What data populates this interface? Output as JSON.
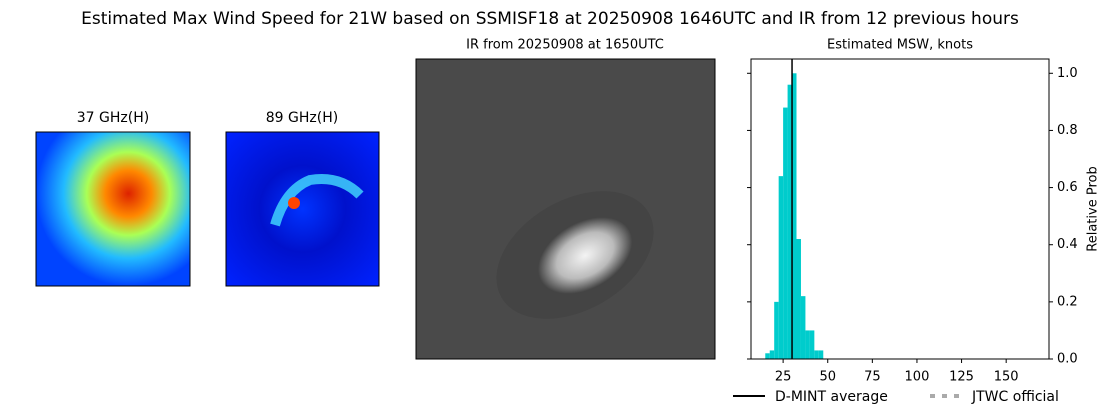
{
  "title": "Estimated Max Wind Speed for 21W based on SSMISF18 at 20250908 1646UTC and IR from 12 previous hours",
  "panels": [
    {
      "title": "37 GHz(H)"
    },
    {
      "title": "89 GHz(H)"
    },
    {
      "title": "IR from 20250908 at 1650UTC"
    }
  ],
  "chart_data": {
    "type": "histogram",
    "title": "Estimated MSW, knots",
    "y_label": "Relative Prob",
    "bins": [
      15,
      17.5,
      20,
      22.5,
      25,
      27.5,
      30,
      32.5,
      35,
      37.5,
      40,
      42.5,
      45,
      47.5
    ],
    "values": [
      0.02,
      0.03,
      0.2,
      0.64,
      0.88,
      0.96,
      1.0,
      0.42,
      0.22,
      0.1,
      0.1,
      0.03,
      0.03
    ],
    "color": "#00cccc",
    "xlim": [
      7,
      174
    ],
    "ylim": [
      0,
      1.05
    ],
    "xticks": [
      25,
      50,
      75,
      100,
      125,
      150
    ],
    "yticks": [
      {
        "value": 0,
        "label": "0.0"
      },
      0.2,
      0.4,
      0.6,
      0.8,
      {
        "value": 1,
        "label": "1.0"
      }
    ],
    "average": {
      "name": "D-MINT average",
      "value": 30,
      "color": "#000000"
    },
    "official": {
      "name": "JTWC official",
      "color": "#aaaaaa"
    }
  }
}
